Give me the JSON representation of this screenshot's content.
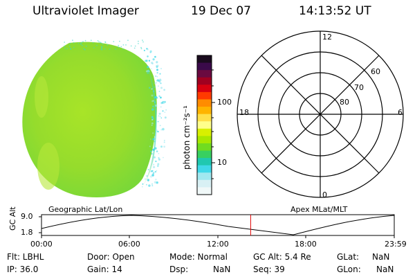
{
  "header": {
    "instrument": "Ultraviolet Imager",
    "date": "19 Dec 07",
    "time": "14:13:52 UT"
  },
  "colorbar": {
    "label": "photon cm⁻²s⁻¹",
    "ticks": [
      "100",
      "10"
    ],
    "colors": [
      "#1a0b1e",
      "#3a0a4a",
      "#6a0a40",
      "#a00020",
      "#d80010",
      "#ff3a00",
      "#ff8c00",
      "#ffb400",
      "#ffe04a",
      "#ffff8c",
      "#d8f000",
      "#a8e800",
      "#70dc20",
      "#38d060",
      "#20c8b0",
      "#40d8e8",
      "#a0e8f0",
      "#d8f0f4",
      "#f0f8f8"
    ]
  },
  "polar": {
    "labels": {
      "top": "12",
      "bottom": "0",
      "left": "18",
      "right": "6"
    },
    "rings": [
      "60",
      "70",
      "80"
    ]
  },
  "timeline": {
    "left_label": "Geographic Lat/Lon",
    "right_label": "Apex MLat/MLT",
    "axis_label": "GC Alt",
    "y_top": "9.0",
    "y_bottom": "1.8",
    "x_ticks": [
      "00:00",
      "06:00",
      "12:00",
      "18:00",
      "23:59"
    ],
    "marker_time_hours": 14.23
  },
  "info": {
    "flt": "Flt: LBHL",
    "ip": "IP: 36.0",
    "door": "Door: Open",
    "gain": "Gain: 14",
    "mode": "Mode: Normal",
    "dsp_label": "Dsp:",
    "dsp_value": "NaN",
    "gcalt": "GC Alt: 5.4 Re",
    "seq": "Seq: 39",
    "glat_label": "GLat:",
    "glat_value": "NaN",
    "glon_label": "GLon:",
    "glon_value": "NaN"
  }
}
